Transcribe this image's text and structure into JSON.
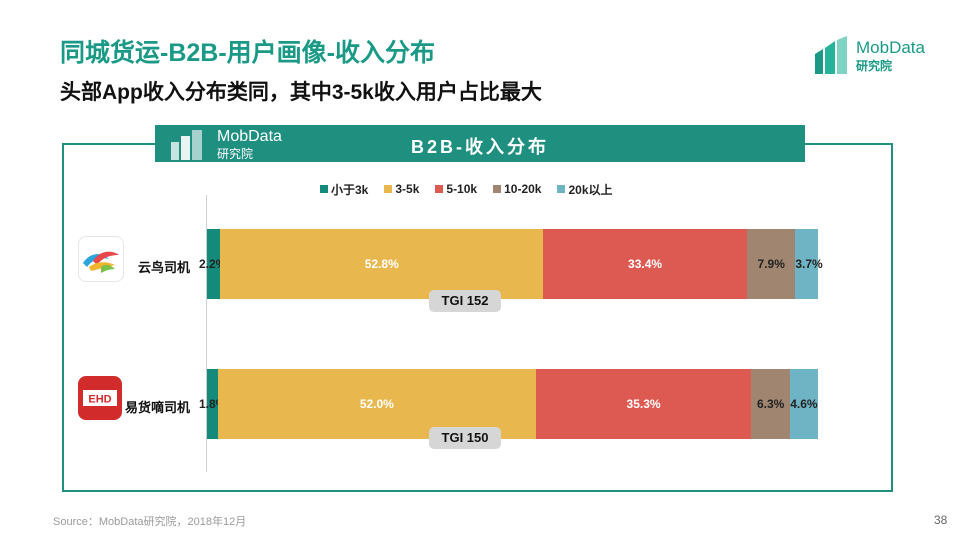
{
  "title": "同城货运-B2B-用户画像-收入分布",
  "subtitle": "头部App收入分布类同，其中3-5k收入用户占比最大",
  "brand": {
    "name": "MobData",
    "sub": "研究院"
  },
  "chart_header": "B2B-收入分布",
  "source": "Source：MobData研究院，2018年12月",
  "page_number": "38",
  "colors": {
    "accent": "#1a9a86",
    "frame": "#1f8f80"
  },
  "chart_data": {
    "type": "bar",
    "orientation": "horizontal",
    "stacked": true,
    "title": "B2B-收入分布",
    "categories": [
      "云鸟司机",
      "易货嘀司机"
    ],
    "series": [
      {
        "name": "小于3k",
        "color": "#138a7a",
        "values": [
          2.2,
          1.8
        ]
      },
      {
        "name": "3-5k",
        "color": "#e8b84e",
        "values": [
          52.8,
          52.0
        ]
      },
      {
        "name": "5-10k",
        "color": "#dd5a52",
        "values": [
          33.4,
          35.3
        ]
      },
      {
        "name": "10-20k",
        "color": "#a08670",
        "values": [
          7.9,
          6.3
        ]
      },
      {
        "name": "20k以上",
        "color": "#6fb4c4",
        "values": [
          3.7,
          4.6
        ]
      }
    ],
    "value_labels": [
      [
        "2.2%",
        "52.8%",
        "33.4%",
        "7.9%",
        "3.7%"
      ],
      [
        "1.8%",
        "52.0%",
        "35.3%",
        "6.3%",
        "4.6%"
      ]
    ],
    "tgi": [
      "TGI 152",
      "TGI 150"
    ],
    "xlim": [
      0,
      100
    ],
    "legend_position": "top"
  }
}
